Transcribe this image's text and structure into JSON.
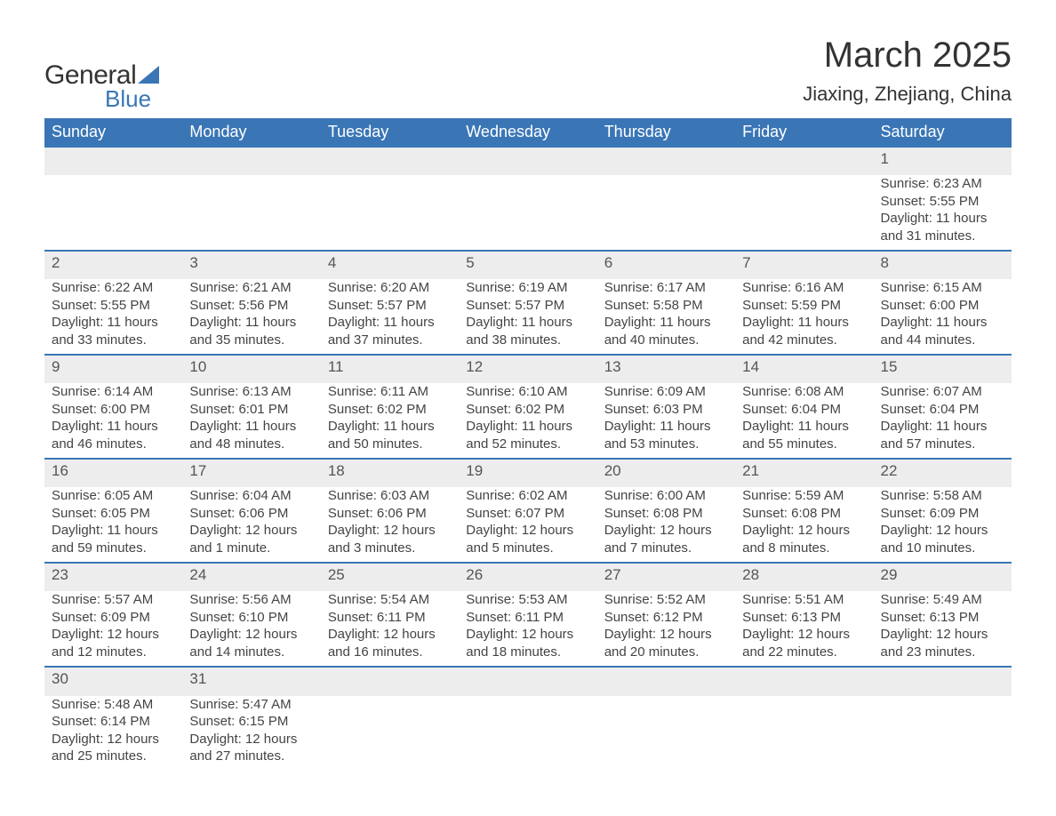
{
  "logo": {
    "text_general": "General",
    "text_blue": "Blue",
    "brand_color": "#3a76b6"
  },
  "title": "March 2025",
  "location": "Jiaxing, Zhejiang, China",
  "colors": {
    "header_bg": "#3a76b6",
    "header_text": "#ffffff",
    "row_border": "#3a76b6",
    "daynum_bg": "#ededed",
    "body_text": "#444444",
    "background": "#ffffff"
  },
  "typography": {
    "title_fontsize_pt": 30,
    "location_fontsize_pt": 16,
    "header_fontsize_pt": 14,
    "body_fontsize_pt": 11
  },
  "weekdays": [
    "Sunday",
    "Monday",
    "Tuesday",
    "Wednesday",
    "Thursday",
    "Friday",
    "Saturday"
  ],
  "weeks": [
    [
      null,
      null,
      null,
      null,
      null,
      null,
      {
        "day": "1",
        "sunrise": "Sunrise: 6:23 AM",
        "sunset": "Sunset: 5:55 PM",
        "daylight1": "Daylight: 11 hours",
        "daylight2": "and 31 minutes."
      }
    ],
    [
      {
        "day": "2",
        "sunrise": "Sunrise: 6:22 AM",
        "sunset": "Sunset: 5:55 PM",
        "daylight1": "Daylight: 11 hours",
        "daylight2": "and 33 minutes."
      },
      {
        "day": "3",
        "sunrise": "Sunrise: 6:21 AM",
        "sunset": "Sunset: 5:56 PM",
        "daylight1": "Daylight: 11 hours",
        "daylight2": "and 35 minutes."
      },
      {
        "day": "4",
        "sunrise": "Sunrise: 6:20 AM",
        "sunset": "Sunset: 5:57 PM",
        "daylight1": "Daylight: 11 hours",
        "daylight2": "and 37 minutes."
      },
      {
        "day": "5",
        "sunrise": "Sunrise: 6:19 AM",
        "sunset": "Sunset: 5:57 PM",
        "daylight1": "Daylight: 11 hours",
        "daylight2": "and 38 minutes."
      },
      {
        "day": "6",
        "sunrise": "Sunrise: 6:17 AM",
        "sunset": "Sunset: 5:58 PM",
        "daylight1": "Daylight: 11 hours",
        "daylight2": "and 40 minutes."
      },
      {
        "day": "7",
        "sunrise": "Sunrise: 6:16 AM",
        "sunset": "Sunset: 5:59 PM",
        "daylight1": "Daylight: 11 hours",
        "daylight2": "and 42 minutes."
      },
      {
        "day": "8",
        "sunrise": "Sunrise: 6:15 AM",
        "sunset": "Sunset: 6:00 PM",
        "daylight1": "Daylight: 11 hours",
        "daylight2": "and 44 minutes."
      }
    ],
    [
      {
        "day": "9",
        "sunrise": "Sunrise: 6:14 AM",
        "sunset": "Sunset: 6:00 PM",
        "daylight1": "Daylight: 11 hours",
        "daylight2": "and 46 minutes."
      },
      {
        "day": "10",
        "sunrise": "Sunrise: 6:13 AM",
        "sunset": "Sunset: 6:01 PM",
        "daylight1": "Daylight: 11 hours",
        "daylight2": "and 48 minutes."
      },
      {
        "day": "11",
        "sunrise": "Sunrise: 6:11 AM",
        "sunset": "Sunset: 6:02 PM",
        "daylight1": "Daylight: 11 hours",
        "daylight2": "and 50 minutes."
      },
      {
        "day": "12",
        "sunrise": "Sunrise: 6:10 AM",
        "sunset": "Sunset: 6:02 PM",
        "daylight1": "Daylight: 11 hours",
        "daylight2": "and 52 minutes."
      },
      {
        "day": "13",
        "sunrise": "Sunrise: 6:09 AM",
        "sunset": "Sunset: 6:03 PM",
        "daylight1": "Daylight: 11 hours",
        "daylight2": "and 53 minutes."
      },
      {
        "day": "14",
        "sunrise": "Sunrise: 6:08 AM",
        "sunset": "Sunset: 6:04 PM",
        "daylight1": "Daylight: 11 hours",
        "daylight2": "and 55 minutes."
      },
      {
        "day": "15",
        "sunrise": "Sunrise: 6:07 AM",
        "sunset": "Sunset: 6:04 PM",
        "daylight1": "Daylight: 11 hours",
        "daylight2": "and 57 minutes."
      }
    ],
    [
      {
        "day": "16",
        "sunrise": "Sunrise: 6:05 AM",
        "sunset": "Sunset: 6:05 PM",
        "daylight1": "Daylight: 11 hours",
        "daylight2": "and 59 minutes."
      },
      {
        "day": "17",
        "sunrise": "Sunrise: 6:04 AM",
        "sunset": "Sunset: 6:06 PM",
        "daylight1": "Daylight: 12 hours",
        "daylight2": "and 1 minute."
      },
      {
        "day": "18",
        "sunrise": "Sunrise: 6:03 AM",
        "sunset": "Sunset: 6:06 PM",
        "daylight1": "Daylight: 12 hours",
        "daylight2": "and 3 minutes."
      },
      {
        "day": "19",
        "sunrise": "Sunrise: 6:02 AM",
        "sunset": "Sunset: 6:07 PM",
        "daylight1": "Daylight: 12 hours",
        "daylight2": "and 5 minutes."
      },
      {
        "day": "20",
        "sunrise": "Sunrise: 6:00 AM",
        "sunset": "Sunset: 6:08 PM",
        "daylight1": "Daylight: 12 hours",
        "daylight2": "and 7 minutes."
      },
      {
        "day": "21",
        "sunrise": "Sunrise: 5:59 AM",
        "sunset": "Sunset: 6:08 PM",
        "daylight1": "Daylight: 12 hours",
        "daylight2": "and 8 minutes."
      },
      {
        "day": "22",
        "sunrise": "Sunrise: 5:58 AM",
        "sunset": "Sunset: 6:09 PM",
        "daylight1": "Daylight: 12 hours",
        "daylight2": "and 10 minutes."
      }
    ],
    [
      {
        "day": "23",
        "sunrise": "Sunrise: 5:57 AM",
        "sunset": "Sunset: 6:09 PM",
        "daylight1": "Daylight: 12 hours",
        "daylight2": "and 12 minutes."
      },
      {
        "day": "24",
        "sunrise": "Sunrise: 5:56 AM",
        "sunset": "Sunset: 6:10 PM",
        "daylight1": "Daylight: 12 hours",
        "daylight2": "and 14 minutes."
      },
      {
        "day": "25",
        "sunrise": "Sunrise: 5:54 AM",
        "sunset": "Sunset: 6:11 PM",
        "daylight1": "Daylight: 12 hours",
        "daylight2": "and 16 minutes."
      },
      {
        "day": "26",
        "sunrise": "Sunrise: 5:53 AM",
        "sunset": "Sunset: 6:11 PM",
        "daylight1": "Daylight: 12 hours",
        "daylight2": "and 18 minutes."
      },
      {
        "day": "27",
        "sunrise": "Sunrise: 5:52 AM",
        "sunset": "Sunset: 6:12 PM",
        "daylight1": "Daylight: 12 hours",
        "daylight2": "and 20 minutes."
      },
      {
        "day": "28",
        "sunrise": "Sunrise: 5:51 AM",
        "sunset": "Sunset: 6:13 PM",
        "daylight1": "Daylight: 12 hours",
        "daylight2": "and 22 minutes."
      },
      {
        "day": "29",
        "sunrise": "Sunrise: 5:49 AM",
        "sunset": "Sunset: 6:13 PM",
        "daylight1": "Daylight: 12 hours",
        "daylight2": "and 23 minutes."
      }
    ],
    [
      {
        "day": "30",
        "sunrise": "Sunrise: 5:48 AM",
        "sunset": "Sunset: 6:14 PM",
        "daylight1": "Daylight: 12 hours",
        "daylight2": "and 25 minutes."
      },
      {
        "day": "31",
        "sunrise": "Sunrise: 5:47 AM",
        "sunset": "Sunset: 6:15 PM",
        "daylight1": "Daylight: 12 hours",
        "daylight2": "and 27 minutes."
      },
      null,
      null,
      null,
      null,
      null
    ]
  ]
}
